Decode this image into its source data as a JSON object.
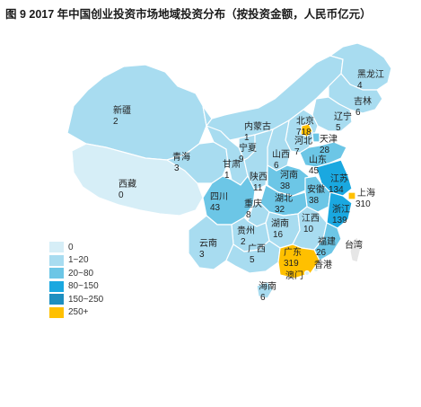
{
  "title": "图 9 2017 年中国创业投资市场地域投资分布（按投资金额，人民币亿元）",
  "legend": [
    {
      "label": "0",
      "color": "#d6eef7"
    },
    {
      "label": "1~20",
      "color": "#a8dcf0"
    },
    {
      "label": "20~80",
      "color": "#6cc6e6"
    },
    {
      "label": "80~150",
      "color": "#1aa8e0"
    },
    {
      "label": "150~250",
      "color": "#1e8fc0"
    },
    {
      "label": "250+",
      "color": "#ffc000"
    }
  ],
  "provinces": [
    {
      "name": "黑龙江",
      "value": "4",
      "tier": "1~20"
    },
    {
      "name": "吉林",
      "value": "6",
      "tier": "1~20"
    },
    {
      "name": "辽宁",
      "value": "5",
      "tier": "1~20"
    },
    {
      "name": "内蒙古",
      "value": "1",
      "tier": "1~20"
    },
    {
      "name": "北京",
      "value": "718",
      "tier": "250+"
    },
    {
      "name": "天津",
      "value": "28",
      "tier": "20~80"
    },
    {
      "name": "河北",
      "value": "7",
      "tier": "1~20"
    },
    {
      "name": "山西",
      "value": "6",
      "tier": "1~20"
    },
    {
      "name": "山东",
      "value": "45",
      "tier": "20~80"
    },
    {
      "name": "新疆",
      "value": "2",
      "tier": "1~20"
    },
    {
      "name": "西藏",
      "value": "0",
      "tier": "0"
    },
    {
      "name": "青海",
      "value": "3",
      "tier": "1~20"
    },
    {
      "name": "甘肃",
      "value": "1",
      "tier": "1~20"
    },
    {
      "name": "宁夏",
      "value": "9",
      "tier": "1~20"
    },
    {
      "name": "陕西",
      "value": "11",
      "tier": "1~20"
    },
    {
      "name": "河南",
      "value": "38",
      "tier": "20~80"
    },
    {
      "name": "江苏",
      "value": "134",
      "tier": "80~150"
    },
    {
      "name": "安徽",
      "value": "38",
      "tier": "20~80"
    },
    {
      "name": "上海",
      "value": "310",
      "tier": "250+"
    },
    {
      "name": "湖北",
      "value": "32",
      "tier": "20~80"
    },
    {
      "name": "浙江",
      "value": "139",
      "tier": "80~150"
    },
    {
      "name": "四川",
      "value": "43",
      "tier": "20~80"
    },
    {
      "name": "重庆",
      "value": "8",
      "tier": "1~20"
    },
    {
      "name": "湖南",
      "value": "16",
      "tier": "1~20"
    },
    {
      "name": "江西",
      "value": "10",
      "tier": "1~20"
    },
    {
      "name": "福建",
      "value": "26",
      "tier": "20~80"
    },
    {
      "name": "贵州",
      "value": "2",
      "tier": "1~20"
    },
    {
      "name": "云南",
      "value": "3",
      "tier": "1~20"
    },
    {
      "name": "广西",
      "value": "5",
      "tier": "1~20"
    },
    {
      "name": "广东",
      "value": "319",
      "tier": "250+"
    },
    {
      "name": "台湾",
      "value": "",
      "tier": "0"
    },
    {
      "name": "香港",
      "value": "",
      "tier": "0"
    },
    {
      "name": "澳门",
      "value": "",
      "tier": "0"
    },
    {
      "name": "海南",
      "value": "6",
      "tier": "1~20"
    }
  ]
}
